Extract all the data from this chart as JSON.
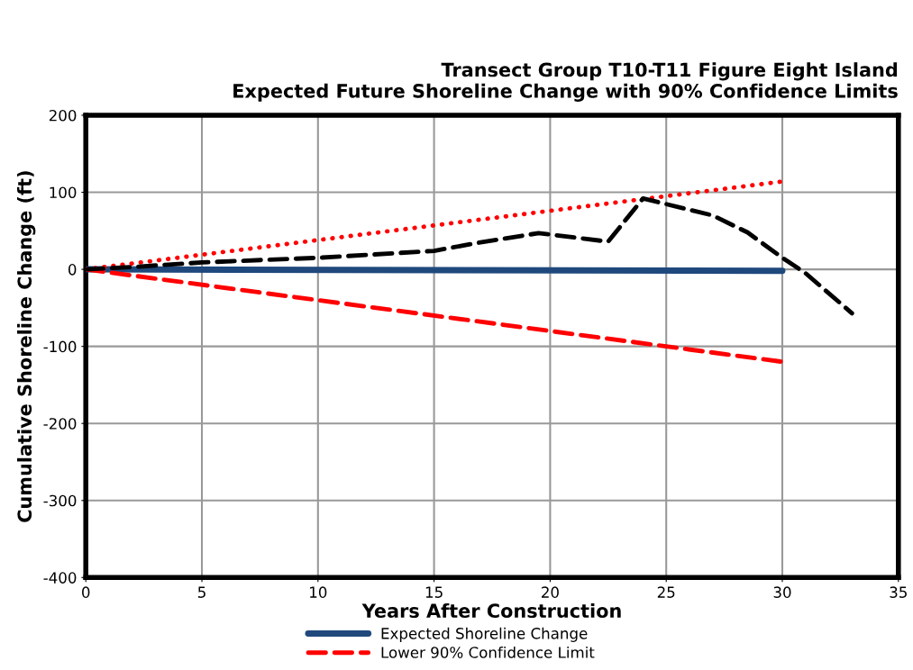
{
  "chart_data": {
    "type": "line",
    "title": "Transect Group T10-T11 Figure Eight Island\nExpected Future Shoreline Change with 90% Confidence Limits",
    "xlabel": "Years After Construction",
    "ylabel": "Cumulative Shoreline Change (ft)",
    "xlim": [
      0,
      35
    ],
    "xticks": [
      0,
      5,
      10,
      15,
      20,
      25,
      30,
      35
    ],
    "ylim": [
      -400,
      200
    ],
    "yticks": [
      -400,
      -300,
      -200,
      -100,
      0,
      100,
      200
    ],
    "grid": true,
    "legend": "bottom",
    "series": [
      {
        "name": "Expected Shoreline Change",
        "color": "#1f497d",
        "line_style": "solid",
        "x": [
          0,
          30
        ],
        "values": [
          0,
          -2
        ]
      },
      {
        "name": "Lower 90% Confidence Limit",
        "color": "#ff0000",
        "line_style": "dashed",
        "x": [
          0,
          30
        ],
        "values": [
          0,
          -120
        ]
      },
      {
        "color": "#ff0000",
        "line_style": "dotted",
        "x": [
          0,
          30
        ],
        "values": [
          0,
          114
        ]
      },
      {
        "color": "#000000",
        "line_style": "dashed",
        "x": [
          0,
          2,
          5,
          10,
          15,
          17,
          19.5,
          22.5,
          24,
          27,
          28.5,
          30,
          31,
          33
        ],
        "values": [
          0,
          3,
          9,
          15,
          24,
          35,
          47,
          36,
          92,
          70,
          48,
          15,
          -5,
          -57
        ]
      }
    ]
  }
}
